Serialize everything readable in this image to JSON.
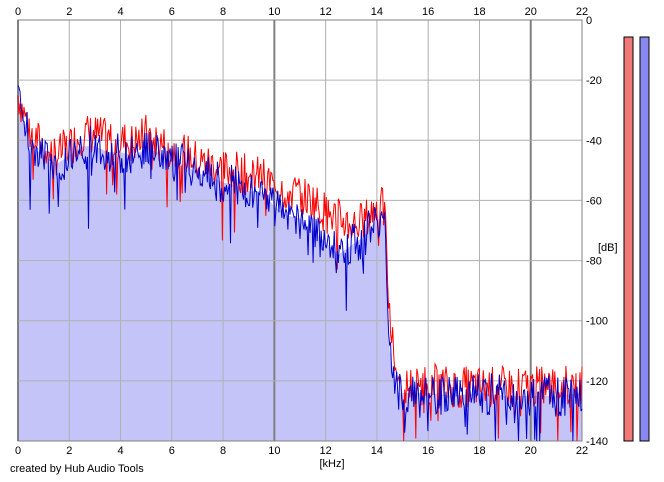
{
  "chart_data": {
    "type": "area",
    "xlabel": "[kHz]",
    "ylabel": "[dB]",
    "xlim": [
      0,
      22
    ],
    "ylim": [
      -140,
      0
    ],
    "x_ticks": [
      0,
      2,
      4,
      6,
      8,
      10,
      12,
      14,
      16,
      18,
      20,
      22
    ],
    "y_ticks": [
      0,
      -20,
      -40,
      -60,
      -80,
      -100,
      -120,
      -140
    ],
    "y_tick_labels": [
      "0",
      "-20",
      "-40",
      "-60",
      "-80",
      "-100",
      "-120",
      "-140"
    ],
    "grid": true,
    "series": [
      {
        "color": "#ff0000",
        "x": [
          0,
          0.5,
          1,
          1.5,
          2,
          2.5,
          3,
          3.5,
          4,
          4.5,
          5,
          5.5,
          6,
          6.5,
          7,
          7.5,
          8,
          8.5,
          9,
          9.5,
          10,
          10.5,
          11,
          11.5,
          12,
          12.5,
          13,
          13.5,
          14,
          14.3,
          14.5,
          14.8,
          15,
          16,
          17,
          18,
          19,
          20,
          21,
          22
        ],
        "values": [
          -25,
          -38,
          -42,
          -45,
          -42,
          -38,
          -38,
          -40,
          -40,
          -41,
          -38,
          -41,
          -43,
          -44,
          -47,
          -48,
          -50,
          -50,
          -52,
          -52,
          -55,
          -57,
          -58,
          -60,
          -64,
          -66,
          -68,
          -67,
          -62,
          -63,
          -100,
          -120,
          -122,
          -121,
          -122,
          -122,
          -122,
          -122,
          -122,
          -121
        ]
      },
      {
        "color": "#0000cc",
        "x": [
          0,
          0.5,
          1,
          1.5,
          2,
          2.5,
          3,
          3.5,
          4,
          4.5,
          5,
          5.5,
          6,
          6.5,
          7,
          7.5,
          8,
          8.5,
          9,
          9.5,
          10,
          10.5,
          11,
          11.5,
          12,
          12.5,
          13,
          13.5,
          14,
          14.3,
          14.5,
          14.8,
          15,
          16,
          17,
          18,
          19,
          20,
          21,
          22
        ],
        "values": [
          -25,
          -42,
          -45,
          -48,
          -45,
          -42,
          -42,
          -44,
          -44,
          -45,
          -43,
          -44,
          -47,
          -48,
          -51,
          -52,
          -54,
          -55,
          -57,
          -57,
          -62,
          -65,
          -66,
          -70,
          -74,
          -78,
          -75,
          -72,
          -66,
          -67,
          -110,
          -124,
          -124,
          -124,
          -125,
          -124,
          -125,
          -125,
          -125,
          -124
        ]
      }
    ],
    "fill_color": "#c4c4f8"
  },
  "footer": {
    "credit": "created by Hub Audio Tools"
  },
  "level_meters": {
    "left_color": "#f07878",
    "right_color": "#8888f0"
  }
}
